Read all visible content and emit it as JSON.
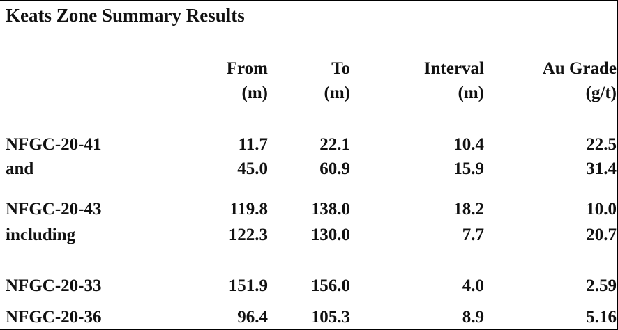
{
  "header": {
    "title": "Keats Zone Summary Results"
  },
  "table": {
    "columns": [
      [
        "From",
        "(m)"
      ],
      [
        "To",
        "(m)"
      ],
      [
        "Interval",
        "(m)"
      ],
      [
        "Au Grade",
        "(g/t)"
      ]
    ],
    "rows": [
      [
        "NFGC-20-41",
        "11.7",
        "22.1",
        "10.4",
        "22.5"
      ],
      [
        "and",
        "45.0",
        "60.9",
        "15.9",
        "31.4"
      ],
      [
        "NFGC-20-43",
        "119.8",
        "138.0",
        "18.2",
        "10.0"
      ],
      [
        "including",
        "122.3",
        "130.0",
        "7.7",
        "20.7"
      ],
      [
        "NFGC-20-33",
        "151.9",
        "156.0",
        "4.0",
        "2.59"
      ],
      [
        "NFGC-20-36",
        "96.4",
        "105.3",
        "8.9",
        "5.16"
      ]
    ]
  }
}
